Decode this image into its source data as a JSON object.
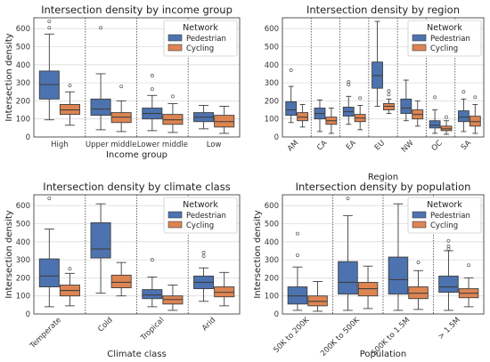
{
  "legend": {
    "title": "Network",
    "placement": "upper-right",
    "entries": [
      {
        "name": "Pedestrian",
        "color": "#4c72b0"
      },
      {
        "name": "Cycling",
        "color": "#dd8452"
      }
    ]
  },
  "chart_data": [
    {
      "type": "box",
      "title": "Intersection density by income group",
      "xlabel": "Income group",
      "ylabel": "Intersection density",
      "ylim": [
        0,
        660
      ],
      "yticks": [
        0,
        100,
        200,
        300,
        400,
        500,
        600
      ],
      "xtick_rotation": 0,
      "grid": true,
      "categories": [
        "High",
        "Upper middle",
        "Lower middle",
        "Low"
      ],
      "series": [
        {
          "name": "Pedestrian",
          "boxes": [
            {
              "whislo": 95,
              "q1": 210,
              "med": 290,
              "q3": 365,
              "whishi": 570,
              "fliers": [
                605,
                640
              ]
            },
            {
              "whislo": 40,
              "q1": 120,
              "med": 155,
              "q3": 210,
              "whishi": 350,
              "fliers": [
                605
              ]
            },
            {
              "whislo": 35,
              "q1": 100,
              "med": 130,
              "q3": 160,
              "whishi": 230,
              "fliers": [
                265,
                340
              ]
            },
            {
              "whislo": 45,
              "q1": 85,
              "med": 110,
              "q3": 135,
              "whishi": 175,
              "fliers": []
            }
          ]
        },
        {
          "name": "Cycling",
          "boxes": [
            {
              "whislo": 65,
              "q1": 125,
              "med": 150,
              "q3": 180,
              "whishi": 250,
              "fliers": [
                285
              ]
            },
            {
              "whislo": 30,
              "q1": 80,
              "med": 110,
              "q3": 135,
              "whishi": 200,
              "fliers": [
                280
              ]
            },
            {
              "whislo": 25,
              "q1": 70,
              "med": 95,
              "q3": 125,
              "whishi": 185,
              "fliers": [
                225
              ]
            },
            {
              "whislo": 20,
              "q1": 55,
              "med": 85,
              "q3": 120,
              "whishi": 170,
              "fliers": []
            }
          ]
        }
      ]
    },
    {
      "type": "box",
      "title": "Intersection density by region",
      "xlabel": "Region",
      "ylabel": "",
      "ylim": [
        0,
        660
      ],
      "yticks": [
        0,
        100,
        200,
        300,
        400,
        500,
        600
      ],
      "xtick_rotation": -45,
      "grid": true,
      "categories": [
        "AM",
        "CA",
        "EA",
        "EU",
        "NW",
        "OC",
        "SA"
      ],
      "series": [
        {
          "name": "Pedestrian",
          "boxes": [
            {
              "whislo": 80,
              "q1": 120,
              "med": 150,
              "q3": 195,
              "whishi": 280,
              "fliers": [
                370
              ]
            },
            {
              "whislo": 30,
              "q1": 100,
              "med": 130,
              "q3": 160,
              "whishi": 205,
              "fliers": []
            },
            {
              "whislo": 70,
              "q1": 115,
              "med": 140,
              "q3": 165,
              "whishi": 225,
              "fliers": [
                290,
                305
              ]
            },
            {
              "whislo": 170,
              "q1": 270,
              "med": 340,
              "q3": 415,
              "whishi": 640,
              "fliers": []
            },
            {
              "whislo": 90,
              "q1": 130,
              "med": 160,
              "q3": 210,
              "whishi": 315,
              "fliers": []
            },
            {
              "whislo": 20,
              "q1": 50,
              "med": 65,
              "q3": 90,
              "whishi": 150,
              "fliers": [
                220
              ]
            },
            {
              "whislo": 30,
              "q1": 85,
              "med": 110,
              "q3": 145,
              "whishi": 210,
              "fliers": [
                250
              ]
            }
          ]
        },
        {
          "name": "Cycling",
          "boxes": [
            {
              "whislo": 55,
              "q1": 90,
              "med": 110,
              "q3": 135,
              "whishi": 180,
              "fliers": []
            },
            {
              "whislo": 20,
              "q1": 70,
              "med": 90,
              "q3": 110,
              "whishi": 160,
              "fliers": []
            },
            {
              "whislo": 40,
              "q1": 85,
              "med": 105,
              "q3": 125,
              "whishi": 175,
              "fliers": [
                215
              ]
            },
            {
              "whislo": 130,
              "q1": 150,
              "med": 170,
              "q3": 185,
              "whishi": 210,
              "fliers": [
                235,
                255
              ]
            },
            {
              "whislo": 60,
              "q1": 100,
              "med": 125,
              "q3": 150,
              "whishi": 200,
              "fliers": []
            },
            {
              "whislo": 15,
              "q1": 35,
              "med": 45,
              "q3": 60,
              "whishi": 90,
              "fliers": [
                110
              ]
            },
            {
              "whislo": 20,
              "q1": 60,
              "med": 85,
              "q3": 115,
              "whishi": 180,
              "fliers": [
                220
              ]
            }
          ]
        }
      ]
    },
    {
      "type": "box",
      "title": "Intersection density by climate class",
      "xlabel": "Climate class",
      "ylabel": "Intersection density",
      "ylim": [
        0,
        660
      ],
      "yticks": [
        0,
        100,
        200,
        300,
        400,
        500,
        600
      ],
      "xtick_rotation": -45,
      "grid": true,
      "categories": [
        "Temperate",
        "Cold",
        "Tropical",
        "Arid"
      ],
      "series": [
        {
          "name": "Pedestrian",
          "boxes": [
            {
              "whislo": 40,
              "q1": 150,
              "med": 210,
              "q3": 305,
              "whishi": 470,
              "fliers": [
                640
              ]
            },
            {
              "whislo": 115,
              "q1": 310,
              "med": 360,
              "q3": 505,
              "whishi": 610,
              "fliers": []
            },
            {
              "whislo": 40,
              "q1": 85,
              "med": 105,
              "q3": 135,
              "whishi": 205,
              "fliers": [
                300
              ]
            },
            {
              "whislo": 70,
              "q1": 140,
              "med": 175,
              "q3": 210,
              "whishi": 255,
              "fliers": [
                320,
                340
              ]
            }
          ]
        },
        {
          "name": "Cycling",
          "boxes": [
            {
              "whislo": 45,
              "q1": 100,
              "med": 130,
              "q3": 160,
              "whishi": 225,
              "fliers": [
                250
              ]
            },
            {
              "whislo": 100,
              "q1": 145,
              "med": 175,
              "q3": 215,
              "whishi": 285,
              "fliers": []
            },
            {
              "whislo": 20,
              "q1": 55,
              "med": 80,
              "q3": 100,
              "whishi": 160,
              "fliers": []
            },
            {
              "whislo": 45,
              "q1": 95,
              "med": 120,
              "q3": 150,
              "whishi": 230,
              "fliers": []
            }
          ]
        }
      ]
    },
    {
      "type": "box",
      "title": "Intersection density by population",
      "xlabel": "Population",
      "ylabel": "Intersection density",
      "ylim": [
        0,
        660
      ],
      "yticks": [
        0,
        100,
        200,
        300,
        400,
        500,
        600
      ],
      "xtick_rotation": -45,
      "grid": true,
      "categories": [
        "50K to 200K",
        "200K to 500K",
        "500K to 1.5M",
        "> 1.5M"
      ],
      "series": [
        {
          "name": "Pedestrian",
          "boxes": [
            {
              "whislo": 20,
              "q1": 55,
              "med": 100,
              "q3": 150,
              "whishi": 260,
              "fliers": [
                325,
                445
              ]
            },
            {
              "whislo": 20,
              "q1": 110,
              "med": 175,
              "q3": 290,
              "whishi": 545,
              "fliers": [
                640
              ]
            },
            {
              "whislo": 20,
              "q1": 110,
              "med": 190,
              "q3": 315,
              "whishi": 610,
              "fliers": []
            },
            {
              "whislo": 20,
              "q1": 120,
              "med": 150,
              "q3": 210,
              "whishi": 350,
              "fliers": [
                360,
                375,
                405
              ]
            }
          ]
        },
        {
          "name": "Cycling",
          "boxes": [
            {
              "whislo": 15,
              "q1": 45,
              "med": 70,
              "q3": 100,
              "whishi": 180,
              "fliers": []
            },
            {
              "whislo": 30,
              "q1": 100,
              "med": 140,
              "q3": 175,
              "whishi": 265,
              "fliers": []
            },
            {
              "whislo": 25,
              "q1": 85,
              "med": 115,
              "q3": 150,
              "whishi": 240,
              "fliers": [
                285
              ]
            },
            {
              "whislo": 40,
              "q1": 90,
              "med": 115,
              "q3": 140,
              "whishi": 200,
              "fliers": [
                270
              ]
            }
          ]
        }
      ]
    }
  ]
}
